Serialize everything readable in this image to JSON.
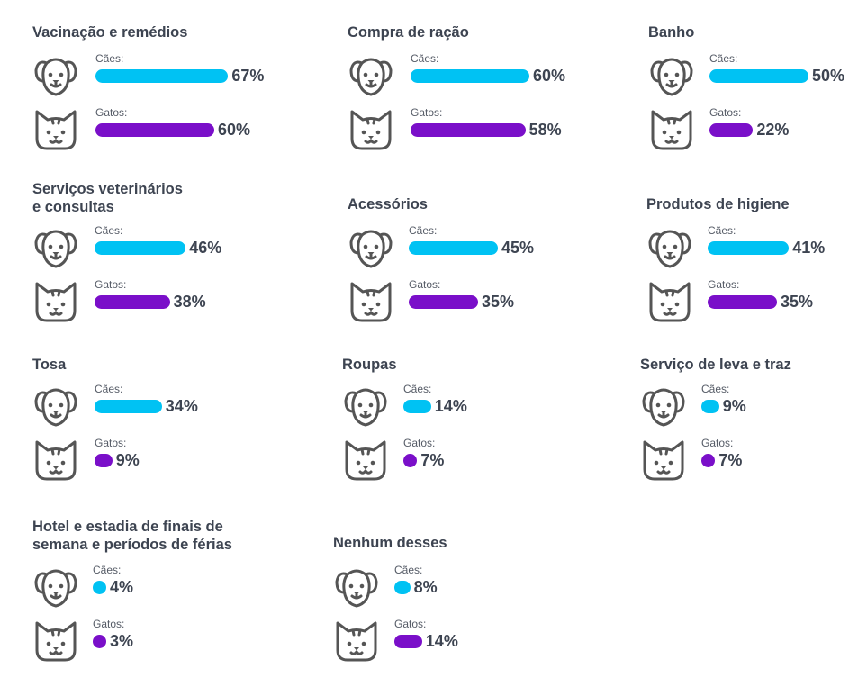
{
  "colors": {
    "dog": "#00c2f3",
    "cat": "#7a0fc9",
    "icon": "#555555"
  },
  "chart_data": {
    "type": "bar",
    "series_labels": {
      "dog": "Cães:",
      "cat": "Gatos:"
    },
    "categories": [
      "Vacinação e remédios",
      "Compra de ração",
      "Banho",
      "Serviços veterinários\ne consultas",
      "Acessórios",
      "Produtos de higiene",
      "Tosa",
      "Roupas",
      "Serviço de leva e traz",
      "Hotel e estadia de finais de\nsemana e períodos de férias",
      "Nenhum desses"
    ],
    "series": [
      {
        "name": "Cães:",
        "values": [
          67,
          60,
          50,
          46,
          45,
          41,
          34,
          14,
          9,
          4,
          8
        ]
      },
      {
        "name": "Gatos:",
        "values": [
          60,
          58,
          22,
          38,
          35,
          35,
          9,
          7,
          7,
          3,
          14
        ]
      }
    ],
    "value_suffix": "%"
  }
}
